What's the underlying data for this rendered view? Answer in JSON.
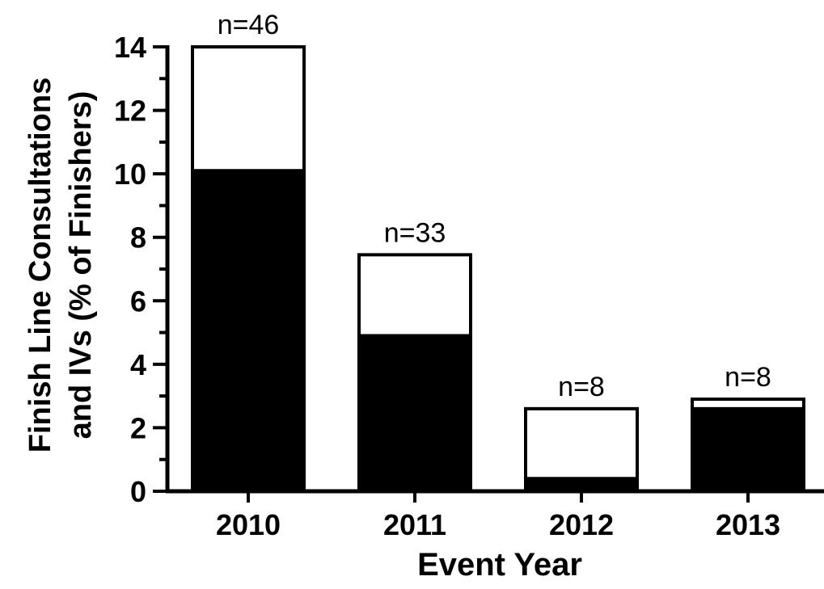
{
  "chart_data": {
    "type": "bar",
    "stacked": true,
    "categories": [
      "2010",
      "2011",
      "2012",
      "2013"
    ],
    "series": [
      {
        "values": [
          10.1,
          4.9,
          0.4,
          2.6
        ],
        "color": "#000000"
      },
      {
        "values": [
          3.9,
          2.55,
          2.2,
          0.3
        ],
        "color": "#ffffff"
      }
    ],
    "totals": [
      14.0,
      7.45,
      2.6,
      2.9
    ],
    "bar_labels": [
      "n=46",
      "n=33",
      "n=8",
      "n=8"
    ],
    "xlabel": "Event Year",
    "ylabel_line1": "Finish Line Consultations",
    "ylabel_line2": "and IVs (% of Finishers)",
    "ylim": [
      0,
      14
    ],
    "yticks": [
      "0",
      "2",
      "4",
      "6",
      "8",
      "10",
      "12",
      "14"
    ],
    "grid": false,
    "legend": "none"
  }
}
